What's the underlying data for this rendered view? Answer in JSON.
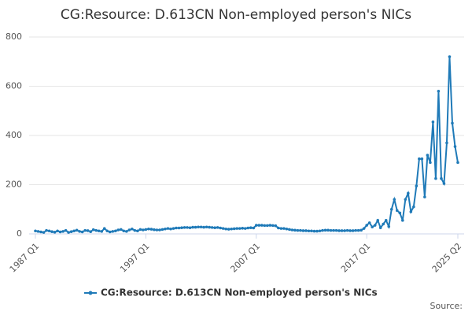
{
  "chart_data": {
    "type": "line",
    "title": "CG:Resource: D.613CN Non-employed person's NICs",
    "source": "Source:",
    "categories": [
      "1987 Q1",
      null,
      null,
      null,
      null,
      null,
      null,
      null,
      null,
      null,
      null,
      null,
      null,
      null,
      null,
      null,
      null,
      null,
      null,
      null,
      null,
      null,
      null,
      null,
      null,
      null,
      null,
      null,
      null,
      null,
      null,
      null,
      null,
      null,
      null,
      null,
      null,
      null,
      null,
      null,
      "1997 Q1",
      null,
      null,
      null,
      null,
      null,
      null,
      null,
      null,
      null,
      null,
      null,
      null,
      null,
      null,
      null,
      null,
      null,
      null,
      null,
      null,
      null,
      null,
      null,
      null,
      null,
      null,
      null,
      null,
      null,
      null,
      null,
      null,
      null,
      null,
      null,
      null,
      null,
      null,
      null,
      "2007 Q1",
      null,
      null,
      null,
      null,
      null,
      null,
      null,
      null,
      null,
      null,
      null,
      null,
      null,
      null,
      null,
      null,
      null,
      null,
      null,
      null,
      null,
      null,
      null,
      null,
      null,
      null,
      null,
      null,
      null,
      null,
      null,
      null,
      null,
      null,
      null,
      null,
      null,
      null,
      null,
      "2017 Q1",
      null,
      null,
      null,
      null,
      null,
      null,
      null,
      null,
      null,
      null,
      null,
      null,
      null,
      null,
      null,
      null,
      null,
      null,
      null,
      null,
      null,
      null,
      null,
      null,
      null,
      null,
      null,
      null,
      null,
      null,
      null,
      null,
      "2025 Q2"
    ],
    "series": [
      {
        "name": "CG:Resource: D.613CN Non-employed person's NICs",
        "color": "#1f7ab8",
        "values": [
          12,
          10,
          8,
          6,
          14,
          12,
          9,
          7,
          12,
          8,
          10,
          14,
          6,
          9,
          12,
          15,
          10,
          8,
          14,
          13,
          9,
          17,
          14,
          12,
          10,
          22,
          12,
          8,
          10,
          12,
          16,
          18,
          12,
          10,
          16,
          20,
          14,
          12,
          18,
          16,
          18,
          20,
          19,
          17,
          16,
          16,
          18,
          20,
          22,
          20,
          22,
          24,
          24,
          25,
          26,
          26,
          25,
          27,
          27,
          28,
          28,
          27,
          28,
          27,
          26,
          25,
          26,
          24,
          22,
          20,
          19,
          20,
          21,
          22,
          22,
          23,
          22,
          24,
          25,
          24,
          35,
          35,
          35,
          34,
          34,
          35,
          34,
          33,
          24,
          22,
          22,
          20,
          18,
          16,
          15,
          14,
          14,
          13,
          13,
          12,
          12,
          11,
          11,
          12,
          14,
          15,
          15,
          14,
          14,
          14,
          13,
          13,
          13,
          14,
          13,
          13,
          14,
          14,
          15,
          22,
          35,
          45,
          28,
          35,
          55,
          25,
          40,
          55,
          30,
          100,
          140,
          95,
          85,
          55,
          140,
          165,
          90,
          110,
          195,
          305,
          305,
          150,
          320,
          290,
          455,
          225,
          580,
          225,
          205,
          370,
          720,
          450,
          355,
          290
        ]
      }
    ],
    "ylim": [
      0,
      800
    ],
    "yticks": [
      0,
      200,
      400,
      600,
      800
    ],
    "grid": true
  }
}
